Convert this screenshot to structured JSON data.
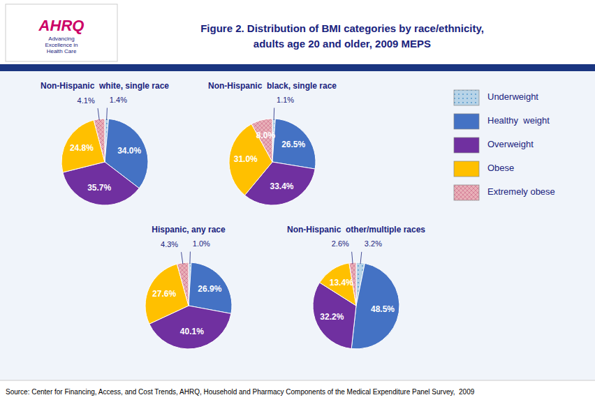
{
  "title": "Figure 2. Distribution of BMI categories by race/ethnicity,\nadults age 20 and older, 2009 MEPS",
  "source": "Source: Center for Financing, Access, and Cost Trends, AHRQ, Household and Pharmacy Components of the Medical Expenditure Panel Survey,  2009",
  "annotations": [
    "AHRQ",
    "Advancing\nExcellence in\nHealth Care"
  ],
  "chart_data": [
    {
      "type": "pie",
      "title": "Non-Hispanic  white, single race",
      "categories": [
        "Underweight",
        "Healthy  weight",
        "Overweight",
        "Obese",
        "Extremely obese"
      ],
      "values": [
        1.4,
        34.0,
        35.7,
        24.8,
        4.1
      ],
      "value_labels": [
        "1.4%",
        "34.0%",
        "35.7%",
        "24.8%",
        "4.1%"
      ],
      "colors": [
        "#b8d4e8",
        "#4472c4",
        "#7030a0",
        "#ffc000",
        "#e8b0b8"
      ],
      "data_labels": true,
      "legend": "right"
    },
    {
      "type": "pie",
      "title": "Non-Hispanic  black, single race",
      "categories": [
        "Underweight",
        "Healthy  weight",
        "Overweight",
        "Obese",
        "Extremely obese"
      ],
      "values": [
        1.1,
        26.5,
        33.4,
        31.0,
        8.0
      ],
      "value_labels": [
        "1.1%",
        "26.5%",
        "33.4%",
        "31.0%",
        "8.0%"
      ],
      "colors": [
        "#b8d4e8",
        "#4472c4",
        "#7030a0",
        "#ffc000",
        "#e8b0b8"
      ],
      "data_labels": true
    },
    {
      "type": "pie",
      "title": "Hispanic, any race",
      "categories": [
        "Underweight",
        "Healthy  weight",
        "Overweight",
        "Obese",
        "Extremely obese"
      ],
      "values": [
        1.0,
        26.9,
        40.1,
        27.6,
        4.3
      ],
      "value_labels": [
        "1.0%",
        "26.9%",
        "40.1%",
        "27.6%",
        "4.3%"
      ],
      "colors": [
        "#b8d4e8",
        "#4472c4",
        "#7030a0",
        "#ffc000",
        "#e8b0b8"
      ],
      "data_labels": true
    },
    {
      "type": "pie",
      "title": "Non-Hispanic  other/multiple races",
      "categories": [
        "Underweight",
        "Healthy  weight",
        "Overweight",
        "Obese",
        "Extremely obese"
      ],
      "values": [
        3.2,
        48.5,
        32.2,
        13.4,
        2.6
      ],
      "value_labels": [
        "3.2%",
        "48.5%",
        "32.2%",
        "13.4%",
        "2.6%"
      ],
      "colors": [
        "#b8d4e8",
        "#4472c4",
        "#7030a0",
        "#ffc000",
        "#e8b0b8"
      ],
      "data_labels": true
    }
  ]
}
